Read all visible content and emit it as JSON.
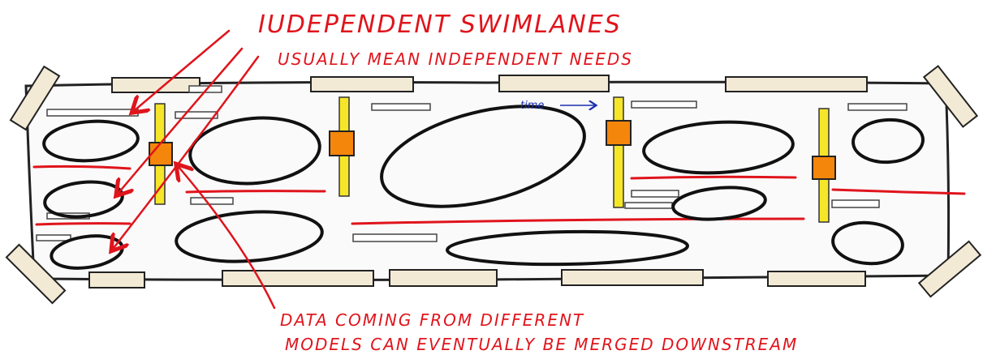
{
  "annotations": {
    "top_line1": "IUDEPENDENT SWIMLANES",
    "top_line2": "USUALLY MEAN INDEPENDENT NEEDS",
    "bottom_line1": "DATA COMING FROM DIFFERENT",
    "bottom_line2": "MODELS CAN EVENTUALLY BE MERGED DOWNSTREAM",
    "time_label": "time"
  },
  "colors": {
    "annotation_red": "#e0141c",
    "time_blue": "#1a2fb0",
    "pipeline_yellow": "#f5e62a",
    "pipeline_node_orange": "#f4860b",
    "tape_beige": "#f3ead6"
  },
  "icons": {
    "time_arrow": "arrow-right-icon",
    "pointer_arrows": "arrow-pointer-icon"
  }
}
